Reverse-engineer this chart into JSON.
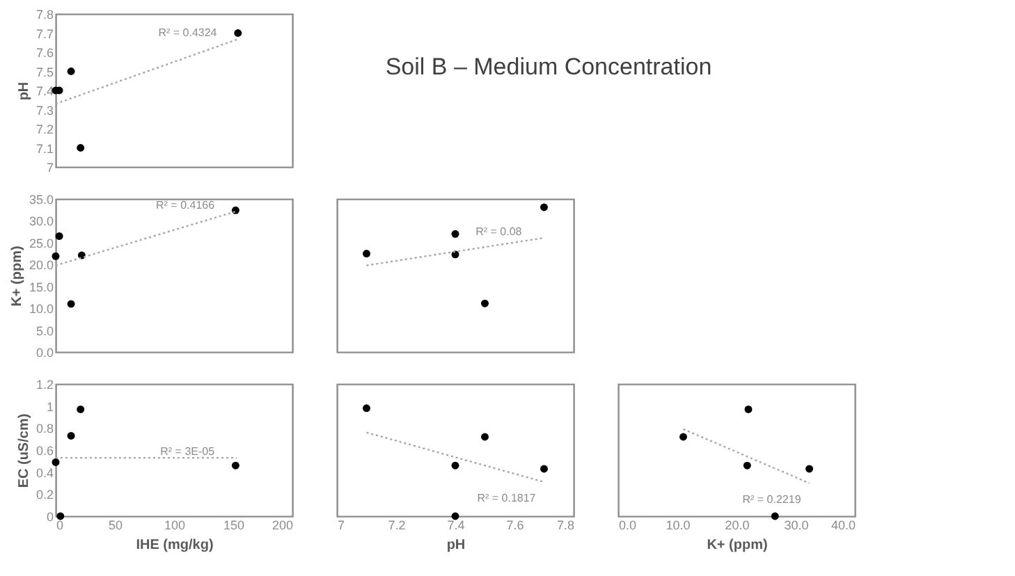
{
  "chart_data": [
    {
      "type": "scatter",
      "ylabel": "pH",
      "xlim": [
        0,
        200
      ],
      "ylim": [
        7,
        7.8
      ],
      "yticks": [
        {
          "value": 7,
          "label": "7"
        },
        7.1,
        7.2,
        7.3,
        7.4,
        7.5,
        7.6,
        7.7,
        7.8
      ],
      "tick_labels": "y",
      "grid": false,
      "series": [
        {
          "type": "scatter",
          "marker": "circle",
          "color": "#000000",
          "x": [
            0,
            3,
            13,
            21,
            154
          ],
          "values": [
            7.4,
            7.4,
            7.5,
            7.1,
            7.7
          ]
        },
        {
          "type": "line",
          "color": "#a6a6a6",
          "line_style": "dotted",
          "x": [
            0,
            155
          ],
          "values": [
            7.33,
            7.67
          ]
        }
      ],
      "annotations": [
        "R² = 0.4324"
      ]
    },
    {
      "type": "other",
      "title": "Soil B – Medium Concentration"
    },
    {
      "type": "scatter",
      "ylabel": "K+ (ppm)",
      "xlim": [
        0,
        200
      ],
      "ylim": [
        0,
        35
      ],
      "yticks": [
        {
          "value": 0,
          "label": "0.0"
        },
        {
          "value": 5,
          "label": "5.0"
        },
        {
          "value": 10,
          "label": "10.0"
        },
        {
          "value": 15,
          "label": "15.0"
        },
        {
          "value": 20,
          "label": "20.0"
        },
        {
          "value": 25,
          "label": "25.0"
        },
        {
          "value": 30,
          "label": "30.0"
        },
        {
          "value": 35,
          "label": "35.0"
        }
      ],
      "tick_labels": "y",
      "grid": false,
      "series": [
        {
          "type": "scatter",
          "marker": "circle",
          "color": "#000000",
          "x": [
            0,
            3,
            13,
            22,
            152
          ],
          "values": [
            21.9,
            26.5,
            11.0,
            22.1,
            32.4
          ]
        },
        {
          "type": "line",
          "color": "#a6a6a6",
          "line_style": "dotted",
          "x": [
            0,
            153
          ],
          "values": [
            19.8,
            32.2
          ]
        }
      ],
      "annotations": [
        "R² = 0.4166"
      ]
    },
    {
      "type": "scatter",
      "xlim": [
        7,
        7.8
      ],
      "ylim": [
        0,
        35
      ],
      "tick_labels": false,
      "grid": false,
      "series": [
        {
          "type": "scatter",
          "marker": "circle",
          "color": "#000000",
          "x": [
            7.1,
            7.4,
            7.4,
            7.5,
            7.7
          ],
          "values": [
            22.5,
            27.0,
            22.3,
            11.1,
            33.1
          ]
        },
        {
          "type": "line",
          "color": "#a6a6a6",
          "line_style": "dotted",
          "x": [
            7.1,
            7.7
          ],
          "values": [
            19.8,
            26.1
          ]
        }
      ],
      "annotations": [
        "R² = 0.08"
      ]
    },
    {
      "type": "scatter",
      "xlabel": "IHE (mg/kg)",
      "ylabel": "EC (uS/cm)",
      "xlim": [
        0,
        200
      ],
      "ylim": [
        0,
        1.2
      ],
      "xticks": [
        0,
        50,
        100,
        150,
        200
      ],
      "yticks": [
        {
          "value": 0,
          "label": "0"
        },
        0.2,
        0.4,
        0.6,
        0.8,
        {
          "value": 1,
          "label": "1"
        },
        1.2
      ],
      "grid": false,
      "series": [
        {
          "type": "scatter",
          "marker": "circle",
          "color": "#000000",
          "x": [
            0,
            4,
            13,
            21,
            152
          ],
          "values": [
            0.49,
            0,
            0.73,
            0.97,
            0.46
          ]
        },
        {
          "type": "line",
          "color": "#a6a6a6",
          "line_style": "dotted",
          "x": [
            0,
            153
          ],
          "values": [
            0.53,
            0.53
          ]
        }
      ],
      "annotations": [
        "R² = 3E-05"
      ]
    },
    {
      "type": "scatter",
      "xlabel": "pH",
      "xlim": [
        7,
        7.8
      ],
      "ylim": [
        0,
        1.2
      ],
      "xticks": [
        {
          "value": 7,
          "label": "7"
        },
        7.2,
        7.4,
        7.6,
        7.8
      ],
      "tick_labels": "x",
      "grid": false,
      "series": [
        {
          "type": "scatter",
          "marker": "circle",
          "color": "#000000",
          "x": [
            7.1,
            7.5,
            7.4,
            7.7,
            7.4
          ],
          "values": [
            0.98,
            0.72,
            0.46,
            0.43,
            0
          ]
        },
        {
          "type": "line",
          "color": "#a6a6a6",
          "line_style": "dotted",
          "x": [
            7.1,
            7.7
          ],
          "values": [
            0.76,
            0.31
          ]
        }
      ],
      "annotations": [
        "R² = 0.1817"
      ]
    },
    {
      "type": "scatter",
      "xlabel": "K+ (ppm)",
      "xlim": [
        0,
        40
      ],
      "ylim": [
        0,
        1.2
      ],
      "xticks": [
        {
          "value": 0,
          "label": "0.0"
        },
        {
          "value": 10,
          "label": "10.0"
        },
        {
          "value": 20,
          "label": "20.0"
        },
        {
          "value": 30,
          "label": "30.0"
        },
        {
          "value": 40,
          "label": "40.0"
        }
      ],
      "tick_labels": "x",
      "grid": false,
      "series": [
        {
          "type": "scatter",
          "marker": "circle",
          "color": "#000000",
          "x": [
            11.0,
            22.0,
            21.8,
            32.3,
            26.5
          ],
          "values": [
            0.72,
            0.97,
            0.46,
            0.43,
            0
          ]
        },
        {
          "type": "line",
          "color": "#a6a6a6",
          "line_style": "dotted",
          "x": [
            11.0,
            32.3
          ],
          "values": [
            0.79,
            0.3
          ]
        }
      ],
      "annotations": [
        "R² = 0.2219"
      ]
    }
  ]
}
